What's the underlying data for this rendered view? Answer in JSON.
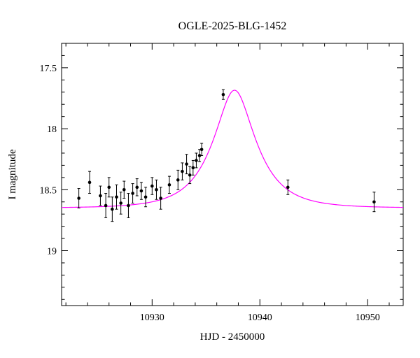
{
  "chart_data": {
    "type": "scatter",
    "title": "OGLE-2025-BLG-1452",
    "xlabel": "HJD - 2450000",
    "ylabel": "I magnitude",
    "xlim": [
      10921.6,
      10953.3
    ],
    "ylim": [
      19.45,
      17.3
    ],
    "y_axis_inverted": true,
    "x_major_ticks": [
      10930,
      10940,
      10950
    ],
    "x_minor_step": 2,
    "y_major_ticks": [
      17.5,
      18,
      18.5,
      19
    ],
    "y_minor_step": 0.1,
    "grid": false,
    "legend": null,
    "data_color": "#000000",
    "model_color": "#ff00ff",
    "frame_color": "#000000",
    "model": {
      "type": "paczynski",
      "t0": 10937.65,
      "tE": 3.6,
      "u0": 0.44,
      "baseline_mag": 18.65,
      "peak_mag": 17.68
    },
    "points": [
      {
        "x": 10923.2,
        "y": 18.57,
        "err": 0.08
      },
      {
        "x": 10924.2,
        "y": 18.44,
        "err": 0.09
      },
      {
        "x": 10925.2,
        "y": 18.55,
        "err": 0.08
      },
      {
        "x": 10925.7,
        "y": 18.63,
        "err": 0.1
      },
      {
        "x": 10926.0,
        "y": 18.48,
        "err": 0.08
      },
      {
        "x": 10926.3,
        "y": 18.66,
        "err": 0.1
      },
      {
        "x": 10926.7,
        "y": 18.56,
        "err": 0.1
      },
      {
        "x": 10927.1,
        "y": 18.61,
        "err": 0.09
      },
      {
        "x": 10927.4,
        "y": 18.5,
        "err": 0.07
      },
      {
        "x": 10927.8,
        "y": 18.63,
        "err": 0.1
      },
      {
        "x": 10928.2,
        "y": 18.53,
        "err": 0.08
      },
      {
        "x": 10928.6,
        "y": 18.48,
        "err": 0.07
      },
      {
        "x": 10929.0,
        "y": 18.51,
        "err": 0.07
      },
      {
        "x": 10929.4,
        "y": 18.56,
        "err": 0.08
      },
      {
        "x": 10930.0,
        "y": 18.47,
        "err": 0.07
      },
      {
        "x": 10930.4,
        "y": 18.5,
        "err": 0.08
      },
      {
        "x": 10930.8,
        "y": 18.57,
        "err": 0.09
      },
      {
        "x": 10931.6,
        "y": 18.46,
        "err": 0.07
      },
      {
        "x": 10932.4,
        "y": 18.42,
        "err": 0.08
      },
      {
        "x": 10932.8,
        "y": 18.35,
        "err": 0.07
      },
      {
        "x": 10933.2,
        "y": 18.29,
        "err": 0.08
      },
      {
        "x": 10933.5,
        "y": 18.38,
        "err": 0.07
      },
      {
        "x": 10933.8,
        "y": 18.32,
        "err": 0.06
      },
      {
        "x": 10934.1,
        "y": 18.26,
        "err": 0.06
      },
      {
        "x": 10934.4,
        "y": 18.22,
        "err": 0.05
      },
      {
        "x": 10934.6,
        "y": 18.17,
        "err": 0.05
      },
      {
        "x": 10936.6,
        "y": 17.72,
        "err": 0.04
      },
      {
        "x": 10942.6,
        "y": 18.48,
        "err": 0.06
      },
      {
        "x": 10950.6,
        "y": 18.6,
        "err": 0.08
      }
    ]
  }
}
